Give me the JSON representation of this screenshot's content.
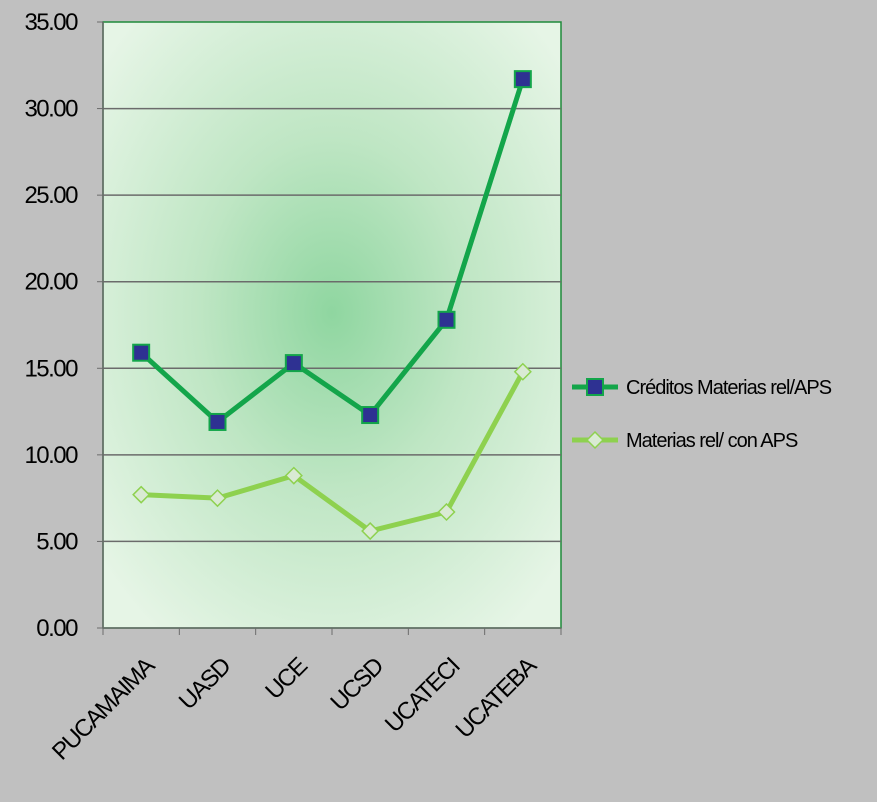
{
  "chart_data": {
    "type": "line",
    "title": "",
    "xlabel": "",
    "ylabel": "",
    "categories": [
      "PUCAMAIMA",
      "UASD",
      "UCE",
      "UCSD",
      "UCATECI",
      "UCATEBA"
    ],
    "ylim": [
      0,
      35
    ],
    "yticks": [
      "0.00",
      "5.00",
      "10.00",
      "15.00",
      "20.00",
      "25.00",
      "30.00",
      "35.00"
    ],
    "grid": true,
    "legend_position": "right",
    "series": [
      {
        "name": "Créditos  Materias rel/APS",
        "values": [
          15.9,
          11.9,
          15.3,
          12.3,
          17.8,
          31.7
        ],
        "line_color": "#13a54a",
        "marker": "square",
        "marker_fill": "#2e3192",
        "marker_stroke": "#13a54a"
      },
      {
        "name": "Materias rel/ con APS",
        "values": [
          7.7,
          7.5,
          8.8,
          5.6,
          6.7,
          14.8
        ],
        "line_color": "#8ed14f",
        "marker": "diamond",
        "marker_fill": "#d9ead3",
        "marker_stroke": "#8ed14f"
      }
    ]
  }
}
